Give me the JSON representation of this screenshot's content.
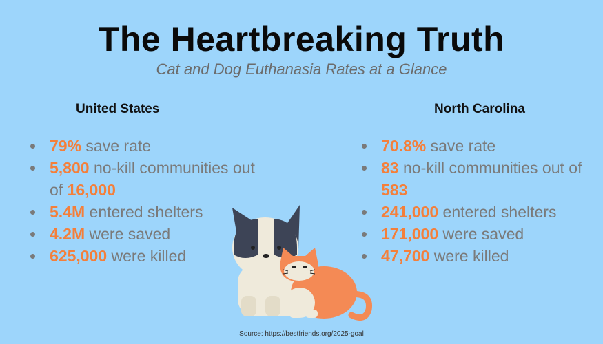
{
  "title": "The Heartbreaking Truth",
  "subtitle": "Cat and Dog Euthanasia Rates at a Glance",
  "columns": [
    {
      "heading": "United States",
      "items": [
        [
          {
            "stat": "79%"
          },
          {
            "text": " save rate"
          }
        ],
        [
          {
            "stat": "5,800"
          },
          {
            "text": " no-kill communities out of "
          },
          {
            "stat": "16,000"
          }
        ],
        [
          {
            "stat": "5.4M"
          },
          {
            "text": " entered shelters"
          }
        ],
        [
          {
            "stat": "4.2M"
          },
          {
            "text": " were saved"
          }
        ],
        [
          {
            "stat": "625,000"
          },
          {
            "text": " were killed"
          }
        ]
      ]
    },
    {
      "heading": "North Carolina",
      "items": [
        [
          {
            "stat": "70.8%"
          },
          {
            "text": " save rate"
          }
        ],
        [
          {
            "stat": "83"
          },
          {
            "text": " no-kill communities out of "
          },
          {
            "stat": "583"
          }
        ],
        [
          {
            "stat": "241,000"
          },
          {
            "text": " entered shelters"
          }
        ],
        [
          {
            "stat": "171,000"
          },
          {
            "text": " were saved"
          }
        ],
        [
          {
            "stat": "47,700"
          },
          {
            "text": " were killed"
          }
        ]
      ]
    }
  ],
  "source": "Source: https://bestfriends.org/2025-goal"
}
